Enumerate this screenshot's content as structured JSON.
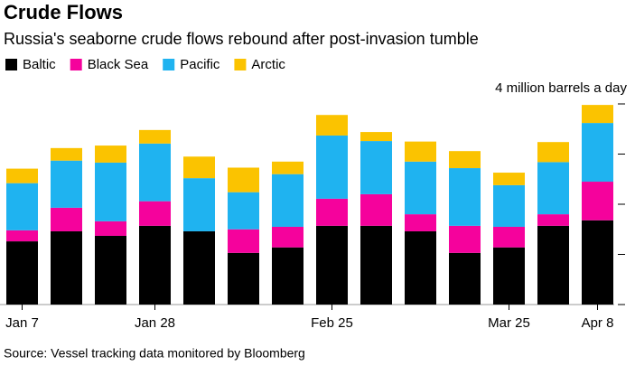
{
  "chart_data": {
    "type": "stacked_bar",
    "title": "Crude Flows",
    "subtitle": "Russia's seaborne crude flows rebound after post-invasion tumble",
    "source": "Source: Vessel tracking data monitored by Bloomberg",
    "categories": [
      "Jan 7",
      null,
      null,
      "Jan 28",
      null,
      null,
      null,
      "Feb 25",
      null,
      null,
      null,
      "Mar 25",
      null,
      "Apr 8"
    ],
    "series": [
      {
        "name": "Baltic",
        "color": "#000000",
        "values": [
          1.26,
          1.46,
          1.37,
          1.57,
          1.46,
          1.03,
          1.14,
          1.57,
          1.57,
          1.46,
          1.03,
          1.14,
          1.57,
          1.68
        ]
      },
      {
        "name": "Black Sea",
        "color": "#f5029c",
        "values": [
          0.22,
          0.47,
          0.29,
          0.49,
          0,
          0.47,
          0.41,
          0.54,
          0.63,
          0.34,
          0.54,
          0.41,
          0.23,
          0.77
        ]
      },
      {
        "name": "Pacific",
        "color": "#1fb3f0",
        "values": [
          0.94,
          0.94,
          1.17,
          1.15,
          1.06,
          0.74,
          1.05,
          1.26,
          1.06,
          1.05,
          1.15,
          0.83,
          1.04,
          1.17
        ]
      },
      {
        "name": "Arctic",
        "color": "#fbc300",
        "values": [
          0.29,
          0.25,
          0.34,
          0.27,
          0.43,
          0.49,
          0.25,
          0.41,
          0.18,
          0.4,
          0.34,
          0.25,
          0.4,
          0.36
        ]
      }
    ],
    "ylim": [
      0,
      4
    ],
    "yticks": [
      0,
      1,
      2,
      3,
      {
        "value": 4,
        "label": "4 million barrels a day"
      }
    ]
  }
}
